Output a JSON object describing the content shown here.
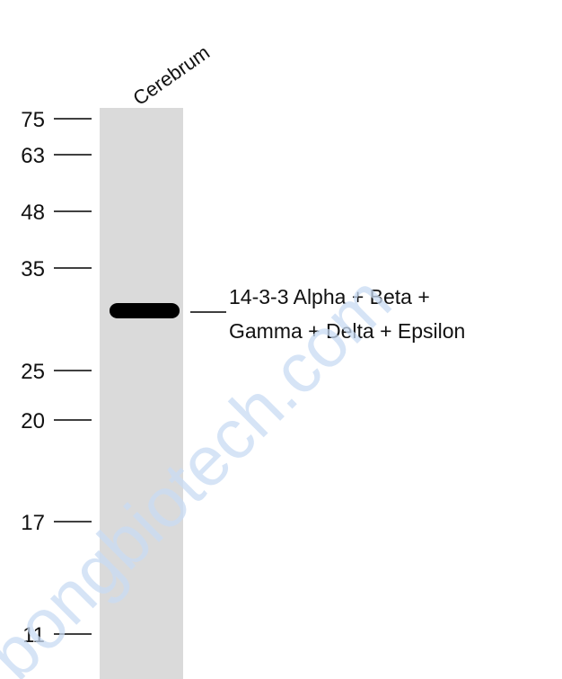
{
  "lane_label": "Cerebrum",
  "markers": [
    75,
    63,
    48,
    35,
    25,
    20,
    17,
    11
  ],
  "band_label": [
    "14-3-3 Alpha + Beta +",
    "Gamma + Delta + Epsilon"
  ],
  "watermark": "bongbiotech.com"
}
